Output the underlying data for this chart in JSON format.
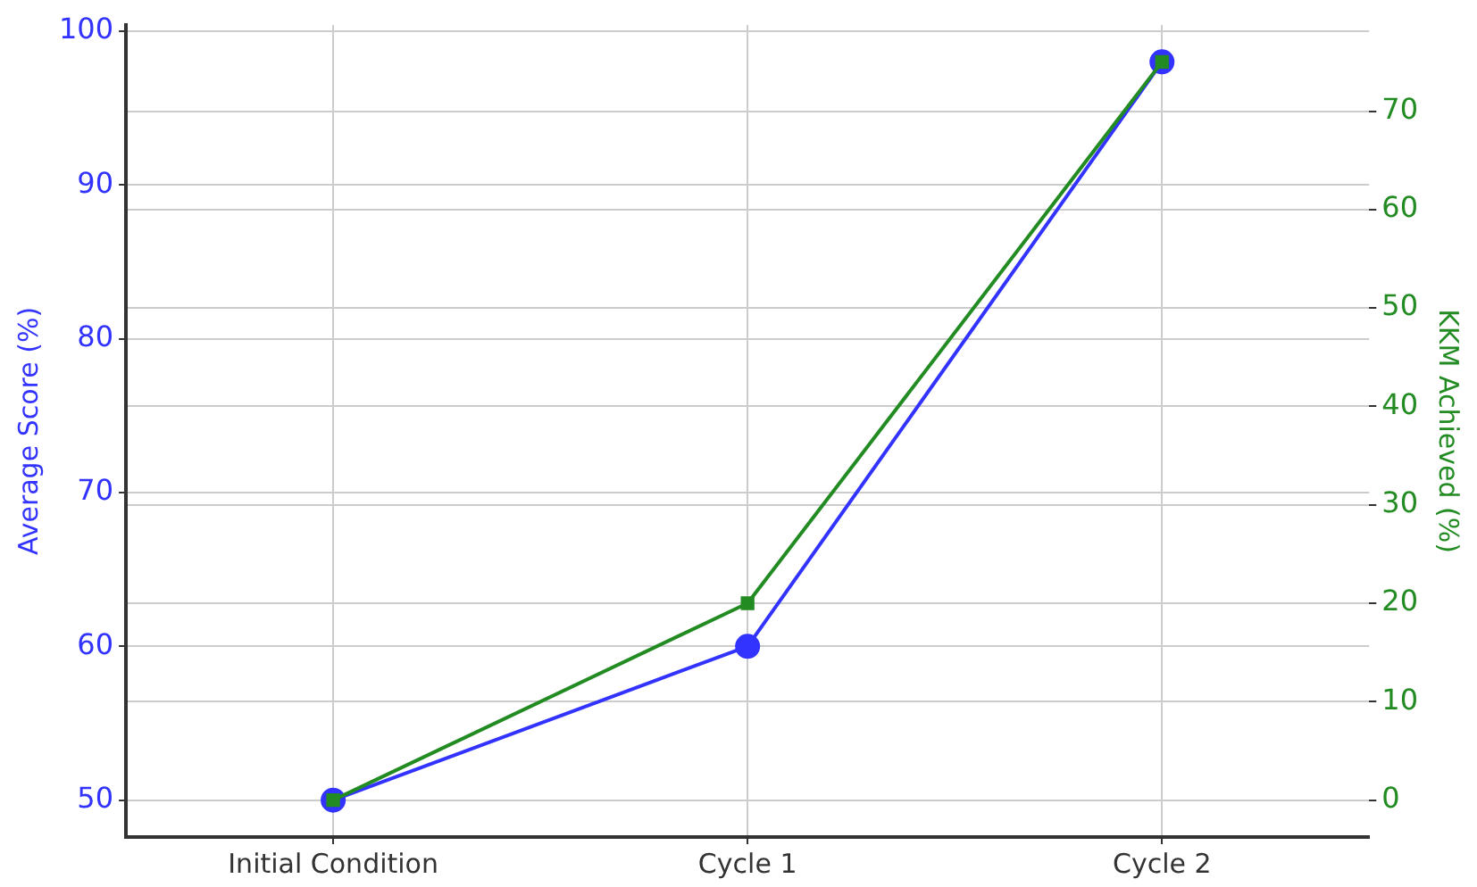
{
  "chart_data": {
    "type": "line",
    "categories": [
      "Initial Condition",
      "Cycle 1",
      "Cycle 2"
    ],
    "ylabel": "Average Score (%)",
    "y2label": "KKM Achieved (%)",
    "series": [
      {
        "name": null,
        "color": "#3333ff",
        "values": [
          50,
          60,
          98
        ],
        "marker": "circle"
      },
      {
        "name": null,
        "color": "#228b22",
        "values": [
          0,
          20,
          75
        ],
        "marker": "square",
        "axis": "y2"
      }
    ],
    "ylim": [
      47.6,
      100.4
    ],
    "yticks": [
      50,
      60,
      70,
      80,
      90,
      100
    ],
    "y2lim": [
      -3.75,
      78.75
    ],
    "y2ticks": [
      0,
      10,
      20,
      30,
      40,
      50,
      60,
      70
    ],
    "grid": true,
    "legend": false,
    "line_style": "solid"
  }
}
